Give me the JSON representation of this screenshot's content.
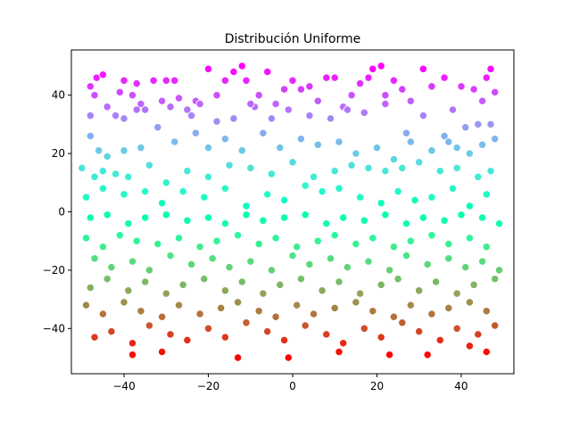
{
  "chart_data": {
    "type": "scatter",
    "title": "Distribución Uniforme",
    "xlabel": "",
    "ylabel": "",
    "xlim": [
      -52.5,
      52.5
    ],
    "ylim": [
      -55.5,
      55.5
    ],
    "xticks": [
      -40,
      -20,
      0,
      20,
      40
    ],
    "yticks": [
      -40,
      -20,
      0,
      20,
      40
    ],
    "grid": false,
    "colormap": "rainbow",
    "color_by": "y",
    "marker_edge_color": "#ffffff",
    "series": [
      {
        "points": [
          [
            -48,
            43
          ],
          [
            -46.5,
            46
          ],
          [
            -45,
            47
          ],
          [
            -47,
            40
          ],
          [
            -44,
            36
          ],
          [
            -41,
            41
          ],
          [
            -40,
            45
          ],
          [
            -38,
            40
          ],
          [
            -37,
            44
          ],
          [
            -36,
            37
          ],
          [
            -35,
            35
          ],
          [
            -33,
            45
          ],
          [
            -31,
            38
          ],
          [
            -30,
            45
          ],
          [
            -28,
            45
          ],
          [
            -27,
            39
          ],
          [
            -25,
            35
          ],
          [
            -23,
            38
          ],
          [
            -22,
            37
          ],
          [
            -20,
            49
          ],
          [
            -18,
            40
          ],
          [
            -16,
            45
          ],
          [
            -14,
            48
          ],
          [
            -12,
            50
          ],
          [
            -11,
            45
          ],
          [
            -9,
            36
          ],
          [
            -8,
            40
          ],
          [
            -6,
            48
          ],
          [
            -4,
            37
          ],
          [
            -2,
            42
          ],
          [
            0,
            45
          ],
          [
            2,
            42
          ],
          [
            4,
            43
          ],
          [
            6,
            38
          ],
          [
            8,
            46
          ],
          [
            10,
            46
          ],
          [
            12,
            36
          ],
          [
            14,
            40
          ],
          [
            16,
            44
          ],
          [
            18,
            46
          ],
          [
            19,
            49
          ],
          [
            21,
            50
          ],
          [
            22,
            40
          ],
          [
            24,
            45
          ],
          [
            26,
            42
          ],
          [
            28,
            38
          ],
          [
            31,
            49
          ],
          [
            33,
            43
          ],
          [
            36,
            46
          ],
          [
            38,
            35
          ],
          [
            40,
            43
          ],
          [
            43,
            42
          ],
          [
            45,
            38
          ],
          [
            46,
            46
          ],
          [
            47,
            49
          ],
          [
            48,
            41
          ],
          [
            -48,
            33
          ],
          [
            -42,
            33
          ],
          [
            -40,
            32
          ],
          [
            -37,
            35
          ],
          [
            -32,
            29
          ],
          [
            -29,
            36
          ],
          [
            -24,
            33
          ],
          [
            -18,
            31
          ],
          [
            -14,
            32
          ],
          [
            -10,
            37
          ],
          [
            -5,
            32
          ],
          [
            -1,
            35
          ],
          [
            4,
            33
          ],
          [
            9,
            32
          ],
          [
            13,
            35
          ],
          [
            17,
            34
          ],
          [
            22,
            37
          ],
          [
            27,
            27
          ],
          [
            31,
            33
          ],
          [
            36,
            26
          ],
          [
            41,
            29
          ],
          [
            44,
            30
          ],
          [
            47,
            30
          ],
          [
            -48,
            26
          ],
          [
            -46,
            21
          ],
          [
            -44,
            19
          ],
          [
            -40,
            21
          ],
          [
            -36,
            22
          ],
          [
            -28,
            24
          ],
          [
            -23,
            27
          ],
          [
            -20,
            22
          ],
          [
            -16,
            25
          ],
          [
            -12,
            21
          ],
          [
            -7,
            27
          ],
          [
            -3,
            22
          ],
          [
            2,
            25
          ],
          [
            6,
            23
          ],
          [
            11,
            24
          ],
          [
            15,
            20
          ],
          [
            20,
            22
          ],
          [
            24,
            18
          ],
          [
            28,
            24
          ],
          [
            33,
            21
          ],
          [
            37,
            24
          ],
          [
            39,
            22
          ],
          [
            42,
            20
          ],
          [
            45,
            23
          ],
          [
            48,
            25
          ],
          [
            -50,
            15
          ],
          [
            -47,
            12
          ],
          [
            -45,
            14
          ],
          [
            -42,
            13
          ],
          [
            -39,
            12
          ],
          [
            -34,
            16
          ],
          [
            -30,
            10
          ],
          [
            -25,
            14
          ],
          [
            -20,
            12
          ],
          [
            -15,
            16
          ],
          [
            -10,
            15
          ],
          [
            -5,
            13
          ],
          [
            0,
            17
          ],
          [
            5,
            12
          ],
          [
            10,
            14
          ],
          [
            14,
            16
          ],
          [
            18,
            15
          ],
          [
            22,
            14
          ],
          [
            26,
            15
          ],
          [
            30,
            17
          ],
          [
            35,
            14
          ],
          [
            39,
            15
          ],
          [
            44,
            12
          ],
          [
            47,
            14
          ],
          [
            -49,
            5
          ],
          [
            -45,
            8
          ],
          [
            -40,
            6
          ],
          [
            -35,
            7
          ],
          [
            -31,
            3
          ],
          [
            -26,
            7
          ],
          [
            -21,
            5
          ],
          [
            -16,
            8
          ],
          [
            -11,
            2
          ],
          [
            -6,
            6
          ],
          [
            -2,
            4
          ],
          [
            3,
            9
          ],
          [
            7,
            7
          ],
          [
            11,
            8
          ],
          [
            16,
            5
          ],
          [
            21,
            3
          ],
          [
            25,
            7
          ],
          [
            29,
            4
          ],
          [
            33,
            5
          ],
          [
            38,
            8
          ],
          [
            42,
            2
          ],
          [
            46,
            6
          ],
          [
            -48,
            -2
          ],
          [
            -44,
            -1
          ],
          [
            -39,
            -4
          ],
          [
            -35,
            -2
          ],
          [
            -30,
            -1
          ],
          [
            -25,
            -3
          ],
          [
            -20,
            -2
          ],
          [
            -16,
            -4
          ],
          [
            -11,
            -1
          ],
          [
            -7,
            -3
          ],
          [
            -2,
            -2
          ],
          [
            3,
            -1
          ],
          [
            8,
            -4
          ],
          [
            12,
            -2
          ],
          [
            17,
            -3
          ],
          [
            22,
            -1
          ],
          [
            27,
            -4
          ],
          [
            31,
            -2
          ],
          [
            36,
            -3
          ],
          [
            40,
            -1
          ],
          [
            45,
            -2
          ],
          [
            49,
            -4
          ],
          [
            -49,
            -9
          ],
          [
            -45,
            -12
          ],
          [
            -41,
            -8
          ],
          [
            -37,
            -10
          ],
          [
            -32,
            -11
          ],
          [
            -27,
            -9
          ],
          [
            -22,
            -12
          ],
          [
            -18,
            -10
          ],
          [
            -13,
            -8
          ],
          [
            -8,
            -11
          ],
          [
            -4,
            -9
          ],
          [
            1,
            -12
          ],
          [
            6,
            -10
          ],
          [
            10,
            -8
          ],
          [
            15,
            -11
          ],
          [
            19,
            -9
          ],
          [
            24,
            -12
          ],
          [
            28,
            -10
          ],
          [
            33,
            -8
          ],
          [
            37,
            -11
          ],
          [
            42,
            -9
          ],
          [
            46,
            -12
          ],
          [
            -47,
            -16
          ],
          [
            -43,
            -19
          ],
          [
            -38,
            -17
          ],
          [
            -34,
            -20
          ],
          [
            -29,
            -15
          ],
          [
            -24,
            -18
          ],
          [
            -19,
            -16
          ],
          [
            -15,
            -19
          ],
          [
            -10,
            -17
          ],
          [
            -5,
            -20
          ],
          [
            0,
            -15
          ],
          [
            4,
            -18
          ],
          [
            9,
            -16
          ],
          [
            13,
            -19
          ],
          [
            18,
            -17
          ],
          [
            23,
            -20
          ],
          [
            27,
            -15
          ],
          [
            32,
            -18
          ],
          [
            37,
            -16
          ],
          [
            41,
            -19
          ],
          [
            45,
            -17
          ],
          [
            49,
            -20
          ],
          [
            -48,
            -26
          ],
          [
            -44,
            -23
          ],
          [
            -39,
            -27
          ],
          [
            -35,
            -24
          ],
          [
            -30,
            -28
          ],
          [
            -26,
            -25
          ],
          [
            -21,
            -23
          ],
          [
            -16,
            -27
          ],
          [
            -12,
            -24
          ],
          [
            -7,
            -28
          ],
          [
            -3,
            -25
          ],
          [
            2,
            -23
          ],
          [
            7,
            -27
          ],
          [
            11,
            -24
          ],
          [
            16,
            -28
          ],
          [
            21,
            -25
          ],
          [
            25,
            -23
          ],
          [
            30,
            -27
          ],
          [
            34,
            -24
          ],
          [
            39,
            -28
          ],
          [
            43,
            -25
          ],
          [
            48,
            -23
          ],
          [
            -49,
            -32
          ],
          [
            -45,
            -35
          ],
          [
            -40,
            -31
          ],
          [
            -36,
            -34
          ],
          [
            -31,
            -36
          ],
          [
            -27,
            -32
          ],
          [
            -22,
            -35
          ],
          [
            -17,
            -33
          ],
          [
            -13,
            -31
          ],
          [
            -8,
            -34
          ],
          [
            -4,
            -36
          ],
          [
            1,
            -32
          ],
          [
            5,
            -35
          ],
          [
            10,
            -33
          ],
          [
            15,
            -31
          ],
          [
            19,
            -34
          ],
          [
            24,
            -36
          ],
          [
            28,
            -32
          ],
          [
            33,
            -35
          ],
          [
            37,
            -33
          ],
          [
            42,
            -31
          ],
          [
            46,
            -34
          ],
          [
            -47,
            -43
          ],
          [
            -43,
            -41
          ],
          [
            -38,
            -45
          ],
          [
            -34,
            -39
          ],
          [
            -29,
            -42
          ],
          [
            -25,
            -44
          ],
          [
            -20,
            -40
          ],
          [
            -16,
            -43
          ],
          [
            -11,
            -38
          ],
          [
            -6,
            -41
          ],
          [
            -2,
            -44
          ],
          [
            3,
            -39
          ],
          [
            8,
            -42
          ],
          [
            12,
            -45
          ],
          [
            17,
            -40
          ],
          [
            21,
            -43
          ],
          [
            26,
            -38
          ],
          [
            30,
            -41
          ],
          [
            35,
            -44
          ],
          [
            39,
            -40
          ],
          [
            44,
            -42
          ],
          [
            48,
            -39
          ],
          [
            -38,
            -49
          ],
          [
            -31,
            -48
          ],
          [
            -13,
            -50
          ],
          [
            -1,
            -50
          ],
          [
            11,
            -48
          ],
          [
            23,
            -49
          ],
          [
            32,
            -49
          ],
          [
            42,
            -46
          ],
          [
            46,
            -48
          ]
        ]
      }
    ]
  }
}
